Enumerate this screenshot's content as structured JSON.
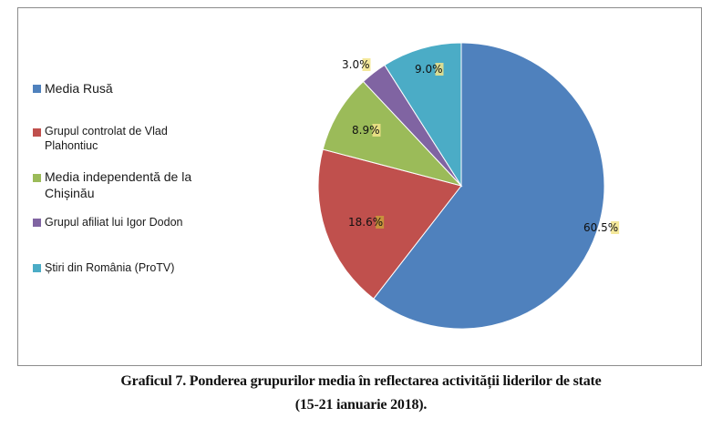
{
  "chart_data": {
    "type": "pie",
    "categories": [
      "Media Rusă",
      "Grupul controlat de Vlad Plahontiuc",
      "Media independentă de la Chișinău",
      "Grupul afiliat lui Igor Dodon",
      "Știri din România (ProTV)"
    ],
    "values": [
      60.5,
      18.6,
      8.9,
      3.0,
      9.0
    ],
    "value_labels": [
      "60.5%",
      "18.6%",
      "8.9%",
      "3.0%",
      "9.0%"
    ],
    "colors": [
      "#4f81bd",
      "#c0504d",
      "#9bbb59",
      "#8064a2",
      "#4bacc6"
    ],
    "start_angle_deg": 0,
    "direction": "clockwise",
    "legend_position": "left"
  },
  "legend": {
    "items": [
      {
        "label": "Media Rusă"
      },
      {
        "label": "Grupul controlat de Vlad Plahontiuc"
      },
      {
        "label": "Media independentă de la Chișinău"
      },
      {
        "label": "Grupul afiliat lui Igor Dodon"
      },
      {
        "label": "Știri din România (ProTV)"
      }
    ]
  },
  "caption": {
    "line1": "Graficul 7. Ponderea grupurilor media în reflectarea activității liderilor de state",
    "line2": "(15-21 ianuarie 2018)."
  }
}
